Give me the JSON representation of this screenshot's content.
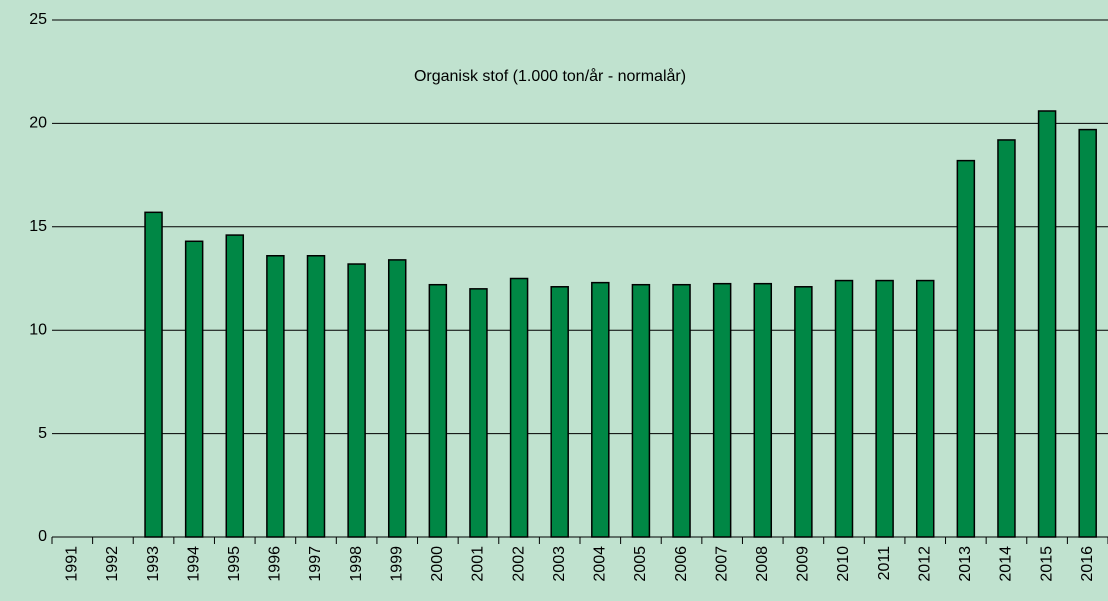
{
  "chart_data": {
    "type": "bar",
    "title": "Organisk stof (1.000 ton/år - normalår)",
    "categories": [
      "1991",
      "1992",
      "1993",
      "1994",
      "1995",
      "1996",
      "1997",
      "1998",
      "1999",
      "2000",
      "2001",
      "2002",
      "2003",
      "2004",
      "2005",
      "2006",
      "2007",
      "2008",
      "2009",
      "2010",
      "2011",
      "2012",
      "2013",
      "2014",
      "2015",
      "2016"
    ],
    "values": [
      null,
      null,
      15.7,
      14.3,
      14.6,
      13.6,
      13.6,
      13.2,
      13.4,
      12.2,
      12.0,
      12.5,
      12.1,
      12.3,
      12.2,
      12.2,
      12.25,
      12.25,
      12.1,
      12.4,
      12.4,
      12.4,
      18.2,
      19.2,
      20.6,
      19.7
    ],
    "color": "#008745",
    "ylim": [
      0,
      25
    ],
    "yticks": [
      0,
      5,
      10,
      15,
      20,
      25
    ],
    "grid": true
  }
}
